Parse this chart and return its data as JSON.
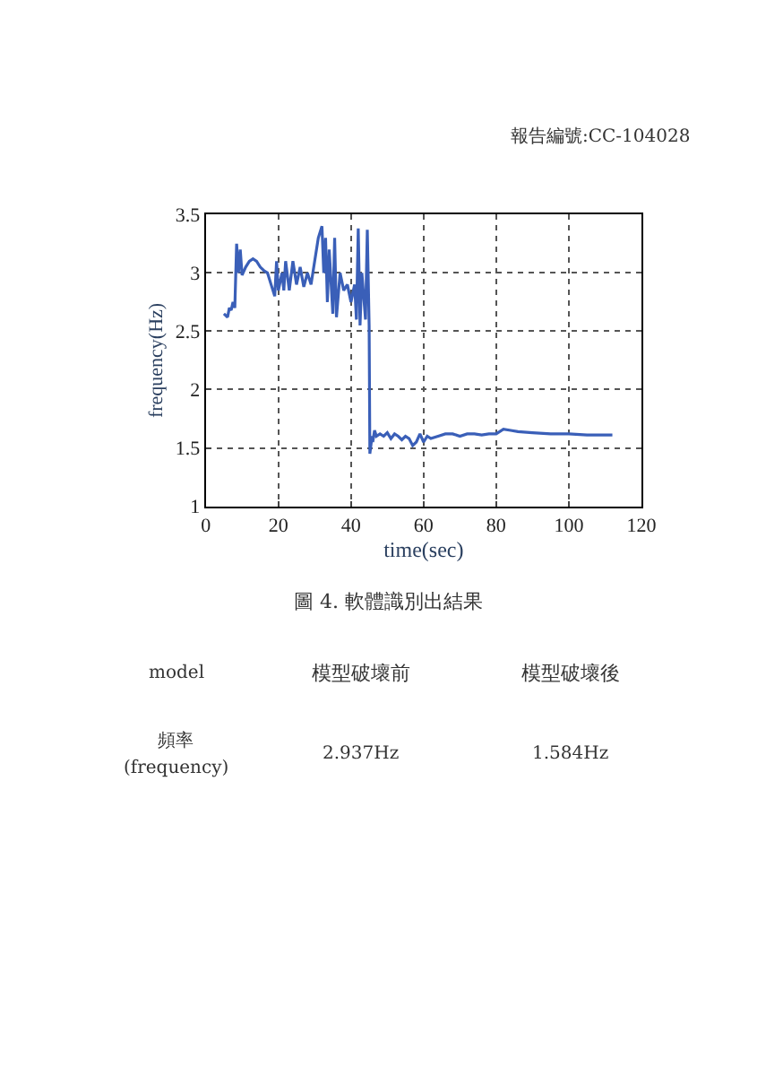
{
  "chart_data": {
    "type": "line",
    "xlabel": "time(sec)",
    "ylabel": "frequency(Hz)",
    "x": [
      5,
      6,
      6.5,
      7,
      7.5,
      8,
      8.5,
      9,
      9.5,
      10,
      11,
      12,
      13,
      14,
      15,
      16,
      17,
      18,
      19,
      19.5,
      20,
      21,
      21.5,
      22,
      23,
      24,
      25,
      26,
      27,
      28,
      29,
      30,
      31,
      32,
      32.5,
      33,
      33.5,
      34,
      35,
      35.5,
      36,
      37,
      38,
      39,
      40,
      41,
      41.5,
      42,
      42.5,
      43,
      44,
      44.5,
      45,
      45.2,
      45.8,
      46,
      46.5,
      47,
      48,
      49,
      50,
      51,
      52,
      53,
      54,
      55,
      56,
      57,
      58,
      59,
      60,
      61,
      62,
      64,
      66,
      68,
      70,
      72,
      74,
      76,
      78,
      80,
      82,
      84,
      86,
      90,
      95,
      100,
      105,
      112
    ],
    "series": [
      {
        "color": "#3a5fb8",
        "values": [
          2.65,
          2.62,
          2.7,
          2.68,
          2.75,
          2.7,
          3.25,
          3.0,
          3.2,
          2.98,
          3.05,
          3.1,
          3.12,
          3.1,
          3.05,
          3.02,
          3.0,
          2.9,
          2.8,
          3.1,
          2.85,
          3.0,
          2.85,
          3.1,
          2.85,
          3.1,
          2.9,
          3.05,
          2.88,
          3.0,
          2.9,
          3.1,
          3.3,
          3.4,
          3.0,
          3.3,
          2.75,
          3.2,
          2.65,
          3.3,
          2.62,
          3.0,
          2.85,
          2.9,
          2.75,
          2.9,
          2.6,
          3.38,
          2.55,
          3.0,
          2.6,
          3.37,
          2.55,
          1.45,
          1.6,
          1.55,
          1.65,
          1.6,
          1.62,
          1.6,
          1.63,
          1.58,
          1.62,
          1.6,
          1.57,
          1.6,
          1.58,
          1.52,
          1.55,
          1.62,
          1.55,
          1.6,
          1.58,
          1.6,
          1.62,
          1.62,
          1.6,
          1.62,
          1.62,
          1.61,
          1.62,
          1.62,
          1.66,
          1.65,
          1.64,
          1.63,
          1.62,
          1.62,
          1.61,
          1.61
        ]
      }
    ],
    "xlim": [
      0,
      120
    ],
    "xticks": [
      0,
      20,
      40,
      60,
      80,
      100,
      120
    ],
    "ylim": [
      1,
      3.5
    ],
    "yticks": [
      1,
      1.5,
      2,
      2.5,
      3,
      3.5
    ],
    "grid": true,
    "legend": false,
    "marker": "none",
    "line_style": "solid",
    "annotations": [
      "報告編號:CC-104028",
      "圖 4. 軟體識別出結果",
      "model",
      "模型破壞前",
      "模型破壞後",
      "頻率",
      "2.937Hz",
      "1.584Hz",
      "(frequency)"
    ]
  }
}
